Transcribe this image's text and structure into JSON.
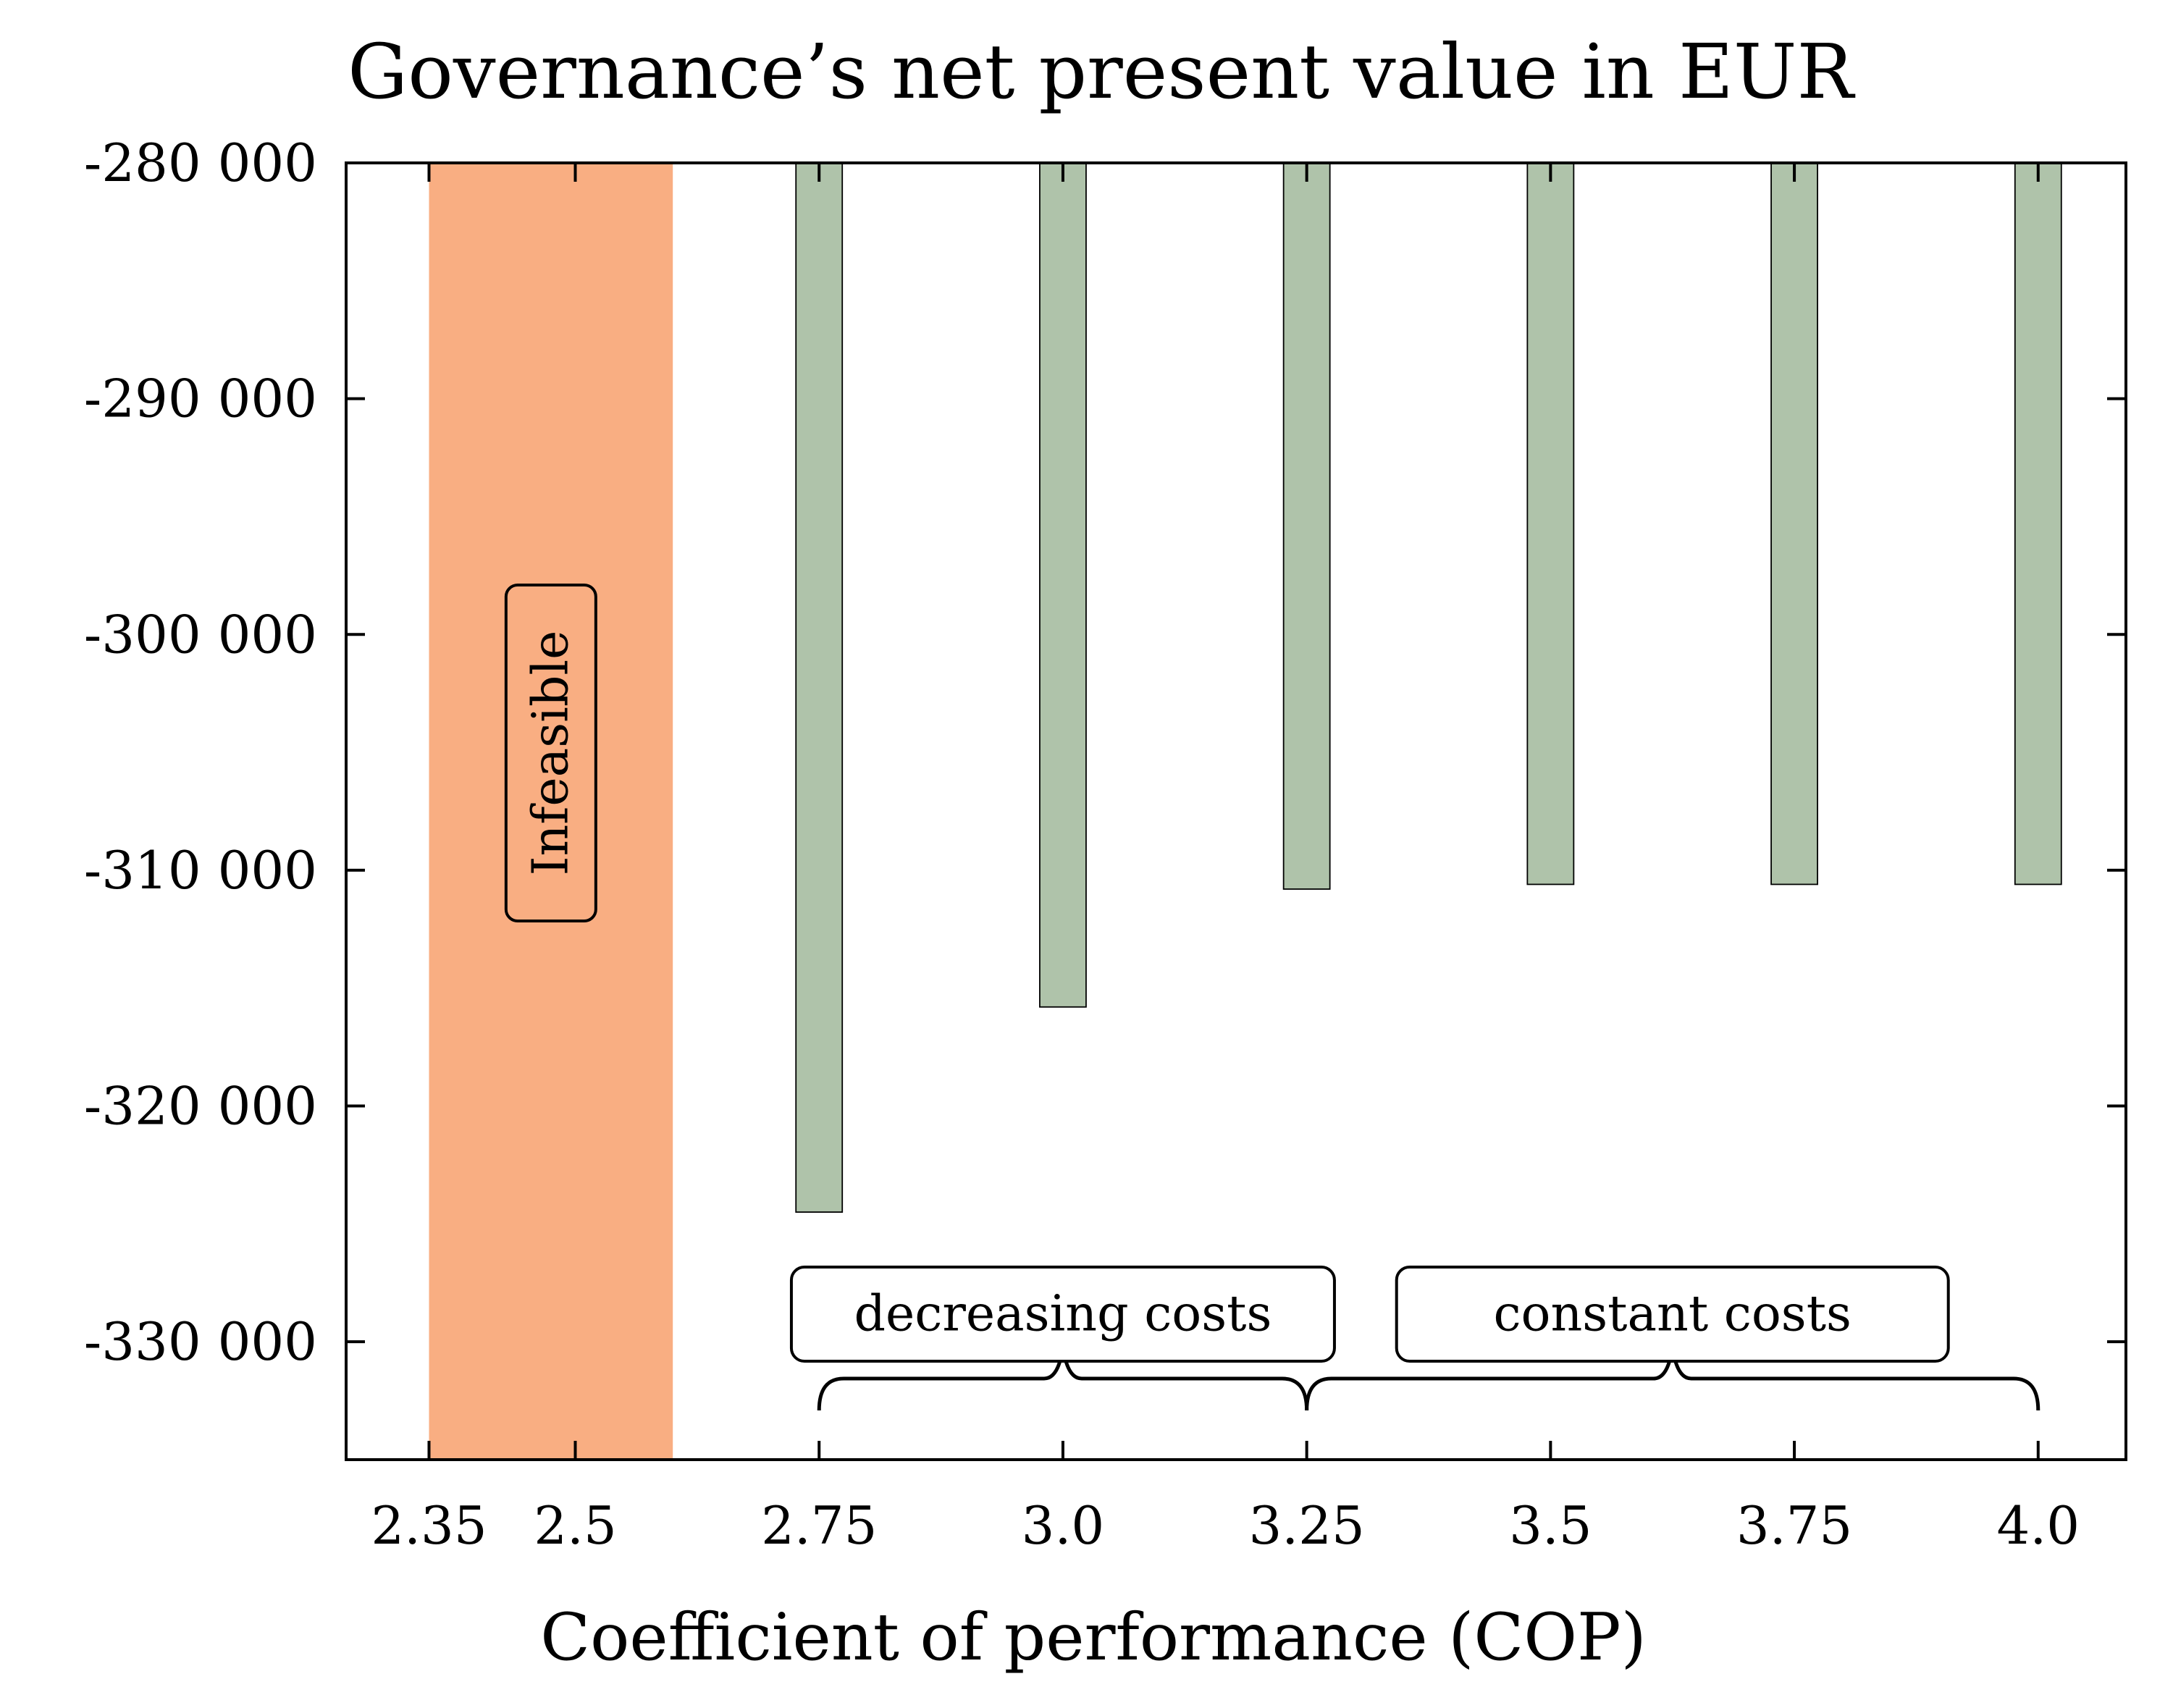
{
  "chart_data": {
    "type": "bar",
    "title": "Governance’s net present value in EUR",
    "xlabel": "Coefficient of performance (COP)",
    "ylabel": "",
    "categories": [
      "2.35",
      "2.5",
      "2.75",
      "3.0",
      "3.25",
      "3.5",
      "3.75",
      "4.0"
    ],
    "x_positions": [
      2.35,
      2.5,
      2.75,
      3.0,
      3.25,
      3.5,
      3.75,
      4.0
    ],
    "x_tick_labels": [
      "2.35",
      "2.5",
      "2.75",
      "3.0",
      "3.25",
      "3.5",
      "3.75",
      "4.0"
    ],
    "xlim": [
      2.265,
      4.09
    ],
    "ylim": [
      -335000,
      -280000
    ],
    "yticks": [
      -280000,
      -290000,
      -300000,
      -310000,
      -320000,
      -330000
    ],
    "ytick_labels": [
      "-280 000",
      "-290 000",
      "-300 000",
      "-310 000",
      "-320 000",
      "-330 000"
    ],
    "series": [
      {
        "values": [
          null,
          null,
          -324500,
          -315800,
          -310800,
          -310600,
          -310600,
          -310600
        ],
        "color": "#afc3aa"
      }
    ],
    "infeasible_region": {
      "x_range": [
        2.35,
        2.6
      ],
      "label": "Infeasible",
      "color": "#f9ae82"
    },
    "annotations": [
      {
        "label": "decreasing costs",
        "brace_x_range": [
          2.75,
          3.25
        ]
      },
      {
        "label": "constant costs",
        "brace_x_range": [
          3.25,
          4.0
        ]
      }
    ],
    "grid": false,
    "legend": "none"
  }
}
